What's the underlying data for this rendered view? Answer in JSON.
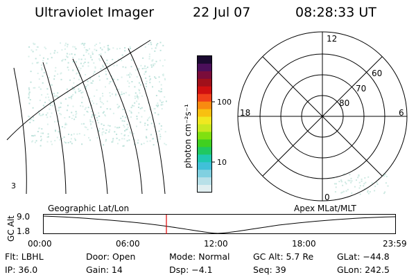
{
  "header": {
    "title": "Ultraviolet Imager",
    "date": "22 Jul 07",
    "time": "08:28:33 UT"
  },
  "colorbar": {
    "unit_label": "photon cm⁻²s⁻¹",
    "ticks": [
      "100",
      "10"
    ],
    "colors": [
      "#1b0a30",
      "#4b0f5a",
      "#7a0c3a",
      "#a0101a",
      "#d01010",
      "#f0401a",
      "#f88a10",
      "#f8c010",
      "#f0e820",
      "#c8e820",
      "#80e010",
      "#40d020",
      "#20c860",
      "#20c8b0",
      "#40c0d8",
      "#80d0e0",
      "#b8e0e8",
      "#e0eef0"
    ]
  },
  "polar": {
    "mlt_labels": {
      "top": "12",
      "left": "18",
      "right": "6",
      "bottom": "0"
    },
    "lat_labels": [
      "60",
      "70",
      "80"
    ]
  },
  "timeline": {
    "left_title": "Geographic Lat/Lon",
    "right_title": "Apex MLat/MLT",
    "y_label": "GC Alt",
    "y_ticks": [
      "9.0",
      "1.8"
    ],
    "x_ticks": [
      "00:00",
      "06:00",
      "12:00",
      "18:00",
      "23:59"
    ],
    "marker_color": "#e00000"
  },
  "info": {
    "row1": [
      {
        "name": "filter",
        "text": "Flt: LBHL"
      },
      {
        "name": "door",
        "text": "Door: Open"
      },
      {
        "name": "mode",
        "text": "Mode: Normal"
      },
      {
        "name": "gc-alt",
        "text": "GC Alt: 5.7 Re"
      },
      {
        "name": "glat",
        "text": "GLat: −44.8"
      }
    ],
    "row2": [
      {
        "name": "ip",
        "text": "IP: 36.0"
      },
      {
        "name": "gain",
        "text": "Gain: 14"
      },
      {
        "name": "dsp",
        "text": "Dsp:  −4.1"
      },
      {
        "name": "seq",
        "text": "Seq: 39"
      },
      {
        "name": "glon",
        "text": "GLon: 242.5"
      }
    ]
  }
}
